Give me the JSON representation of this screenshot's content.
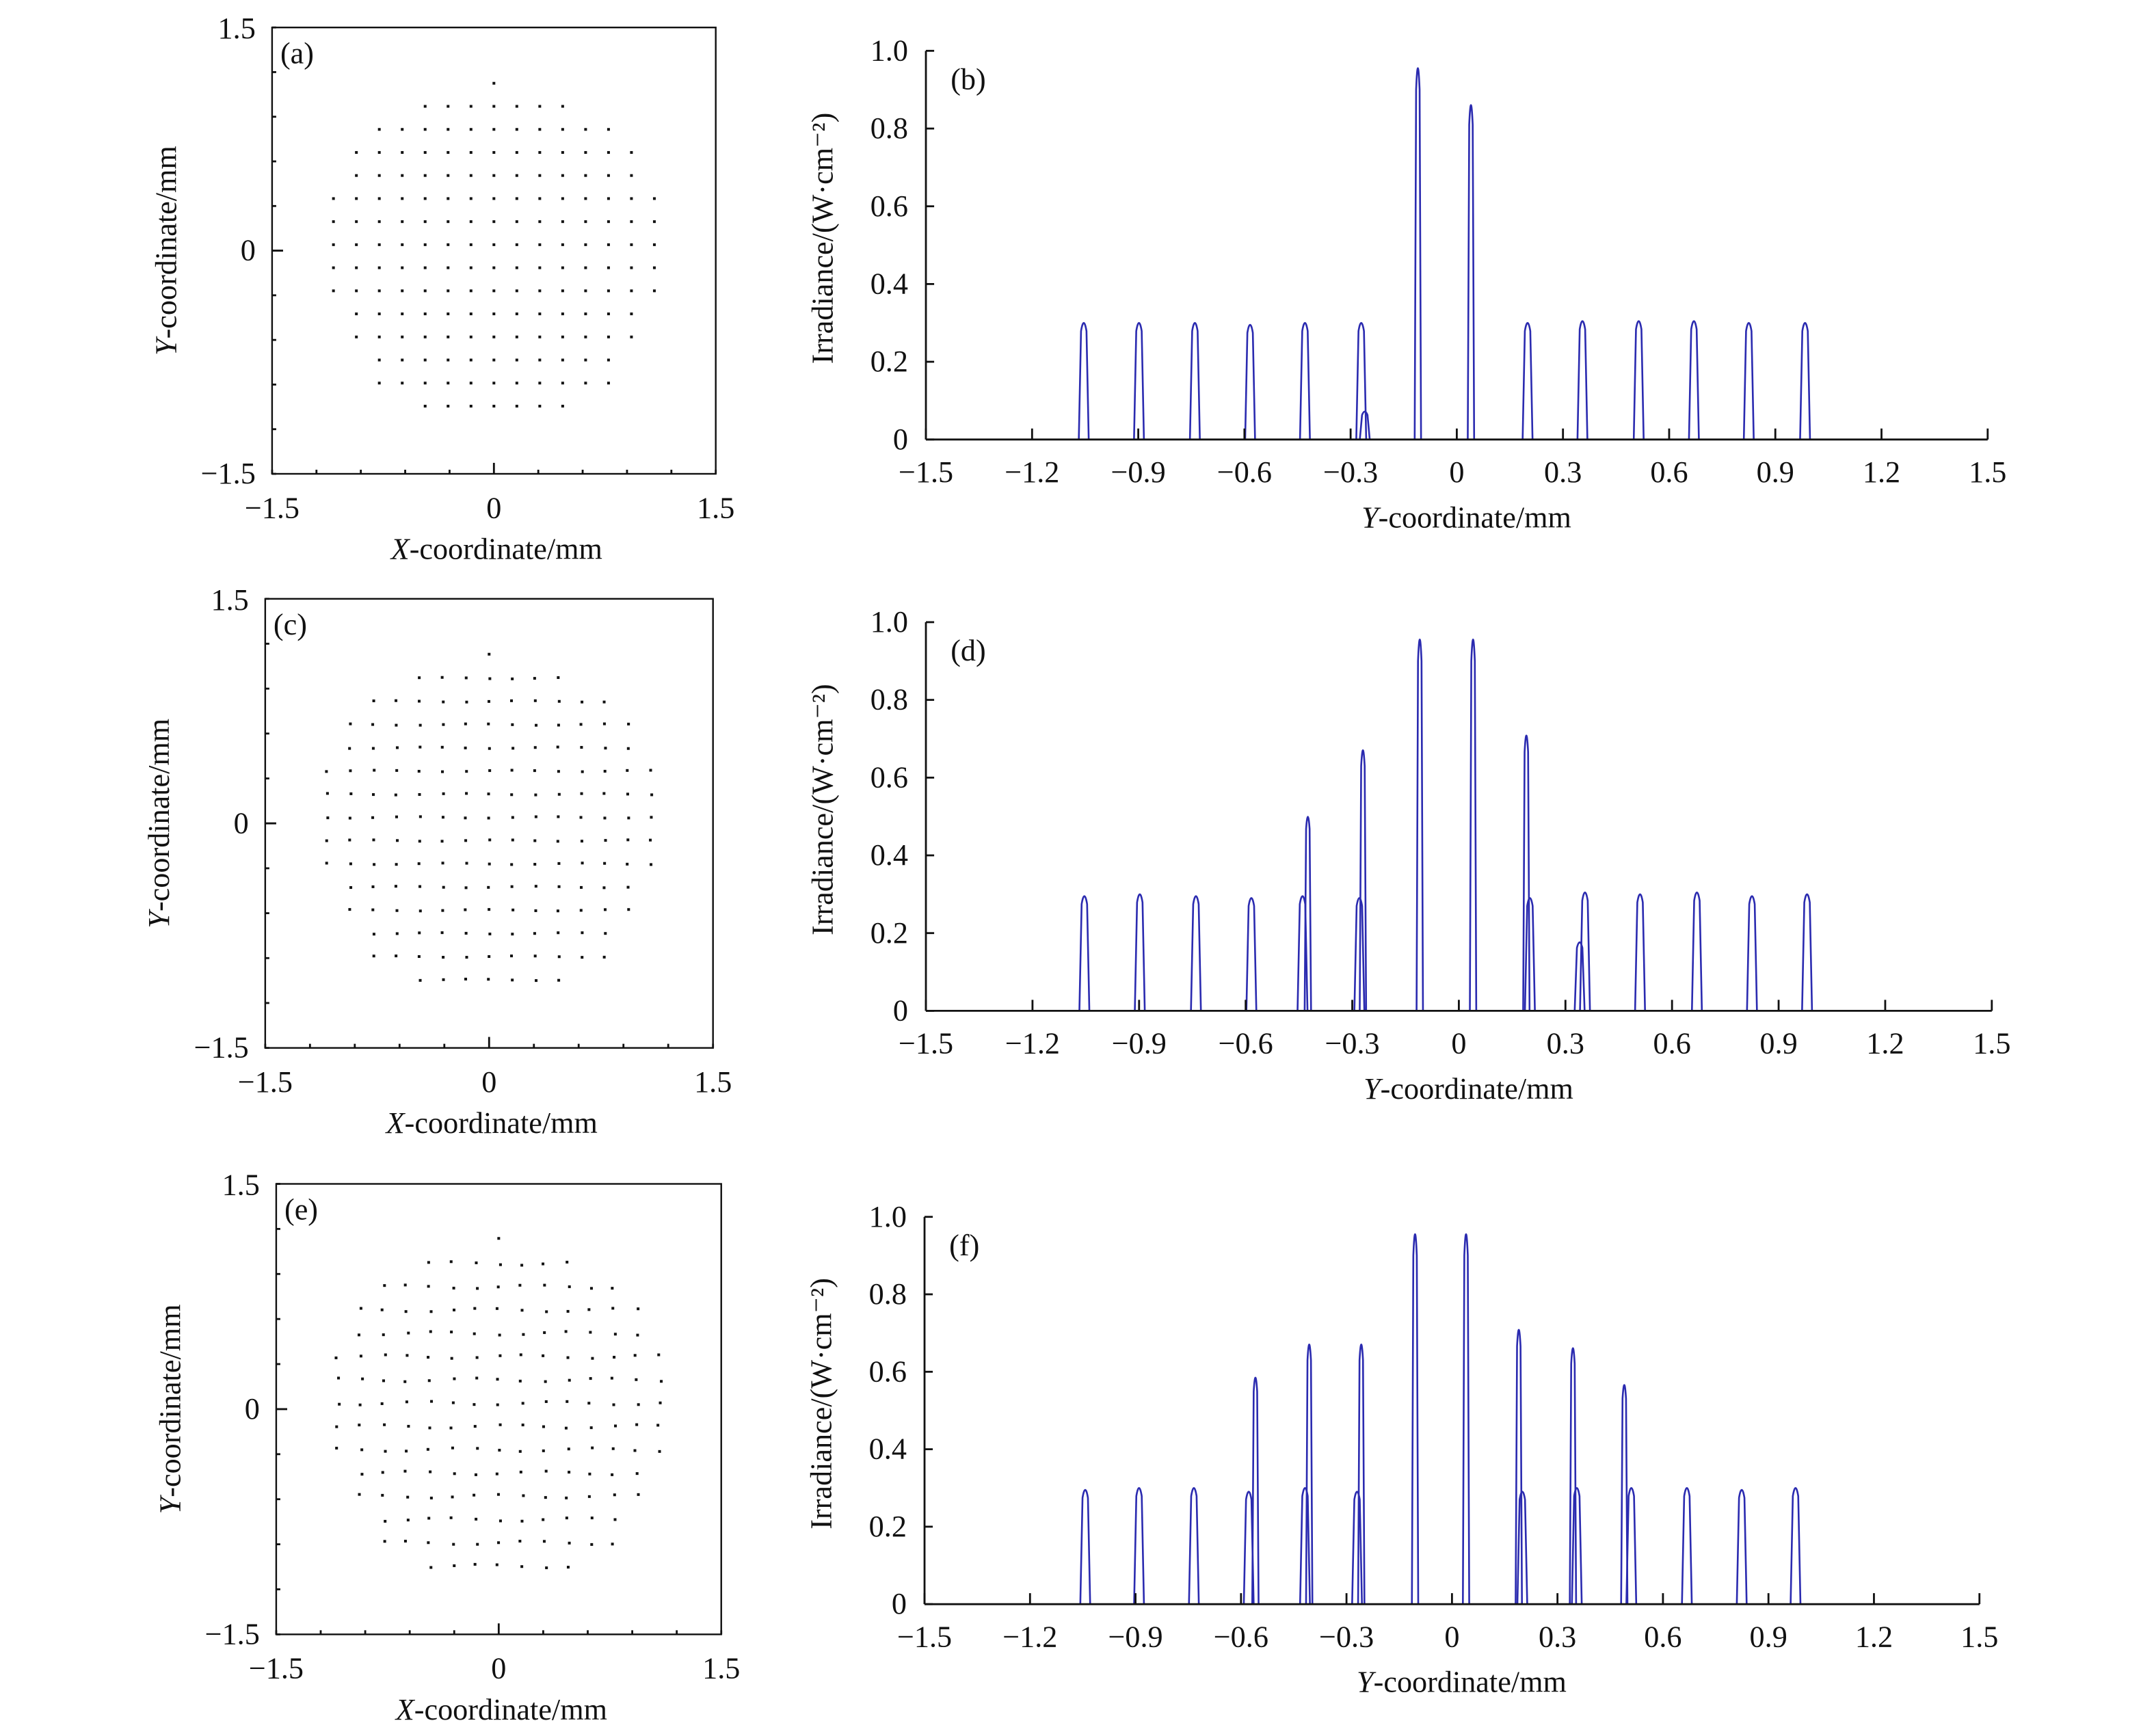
{
  "chart_data": [
    {
      "panel": "(a)",
      "type": "scatter",
      "xlabel": "X-coordinate/mm",
      "ylabel": "Y-coordinate/mm",
      "xlim": [
        -1.5,
        1.5
      ],
      "ylim": [
        -1.5,
        1.5
      ],
      "xticks": [
        "−1.5",
        "0",
        "1.5"
      ],
      "yticks": [
        "−1.5",
        "0",
        "1.5"
      ],
      "grid": false,
      "point_grid": {
        "spacing": 0.155,
        "rows": [
          {
            "y": 1.125,
            "x_min": 0,
            "x_max": 0
          },
          {
            "y": 0.97,
            "x_min": -0.465,
            "x_max": 0.465
          },
          {
            "y": 0.815,
            "x_min": -0.775,
            "x_max": 0.775
          },
          {
            "y": 0.66,
            "x_min": -0.93,
            "x_max": 0.93
          },
          {
            "y": 0.505,
            "x_min": -0.93,
            "x_max": 0.93
          },
          {
            "y": 0.35,
            "x_min": -1.085,
            "x_max": 1.085
          },
          {
            "y": 0.195,
            "x_min": -1.085,
            "x_max": 1.085
          },
          {
            "y": 0.04,
            "x_min": -1.085,
            "x_max": 1.085
          },
          {
            "y": -0.115,
            "x_min": -1.085,
            "x_max": 1.085
          },
          {
            "y": -0.27,
            "x_min": -1.085,
            "x_max": 1.085
          },
          {
            "y": -0.425,
            "x_min": -0.93,
            "x_max": 0.93
          },
          {
            "y": -0.58,
            "x_min": -0.93,
            "x_max": 0.93
          },
          {
            "y": -0.735,
            "x_min": -0.775,
            "x_max": 0.775
          },
          {
            "y": -0.89,
            "x_min": -0.775,
            "x_max": 0.775
          },
          {
            "y": -1.045,
            "x_min": -0.465,
            "x_max": 0.465
          }
        ]
      }
    },
    {
      "panel": "(b)",
      "type": "line",
      "xlabel": "Y-coordinate/mm",
      "ylabel": "Irradiance/(W·cm⁻²)",
      "xlim": [
        -1.5,
        1.5
      ],
      "ylim": [
        0,
        1.0
      ],
      "xticks": [
        "−1.5",
        "−1.2",
        "−0.9",
        "−0.6",
        "−0.3",
        "0",
        "0.3",
        "0.6",
        "0.9",
        "1.2",
        "1.5"
      ],
      "yticks": [
        "0",
        "0.2",
        "0.4",
        "0.6",
        "0.8",
        "1.0"
      ],
      "grid": false,
      "peaks": [
        {
          "x": -1.054,
          "y": 0.31
        },
        {
          "x": -0.898,
          "y": 0.31
        },
        {
          "x": -0.74,
          "y": 0.31
        },
        {
          "x": -0.584,
          "y": 0.305
        },
        {
          "x": -0.429,
          "y": 0.31
        },
        {
          "x": -0.27,
          "y": 0.31
        },
        {
          "x": -0.26,
          "y": 0.07
        },
        {
          "x": -0.11,
          "y": 1.0
        },
        {
          "x": 0.04,
          "y": 0.9
        },
        {
          "x": 0.2,
          "y": 0.31
        },
        {
          "x": 0.355,
          "y": 0.315
        },
        {
          "x": 0.514,
          "y": 0.315
        },
        {
          "x": 0.67,
          "y": 0.315
        },
        {
          "x": 0.825,
          "y": 0.31
        },
        {
          "x": 0.984,
          "y": 0.31
        }
      ]
    },
    {
      "panel": "(c)",
      "type": "scatter",
      "xlabel": "X-coordinate/mm",
      "ylabel": "Y-coordinate/mm",
      "xlim": [
        -1.5,
        1.5
      ],
      "ylim": [
        -1.5,
        1.5
      ],
      "xticks": [
        "−1.5",
        "0",
        "1.5"
      ],
      "yticks": [
        "−1.5",
        "0",
        "1.5"
      ],
      "grid": false
    },
    {
      "panel": "(d)",
      "type": "line",
      "xlabel": "Y-coordinate/mm",
      "ylabel": "Irradiance/(W·cm⁻²)",
      "xlim": [
        -1.5,
        1.5
      ],
      "ylim": [
        0,
        1.0
      ],
      "xticks": [
        "−1.5",
        "−1.2",
        "−0.9",
        "−0.6",
        "−0.3",
        "0",
        "0.3",
        "0.6",
        "0.9",
        "1.2",
        "1.5"
      ],
      "yticks": [
        "0",
        "0.2",
        "0.4",
        "0.6",
        "0.8",
        "1.0"
      ],
      "grid": false,
      "peaks": [
        {
          "x": -1.054,
          "y": 0.305
        },
        {
          "x": -0.898,
          "y": 0.31
        },
        {
          "x": -0.74,
          "y": 0.305
        },
        {
          "x": -0.584,
          "y": 0.3
        },
        {
          "x": -0.44,
          "y": 0.305
        },
        {
          "x": -0.425,
          "y": 0.52
        },
        {
          "x": -0.28,
          "y": 0.3
        },
        {
          "x": -0.27,
          "y": 0.7
        },
        {
          "x": -0.11,
          "y": 1.0
        },
        {
          "x": 0.04,
          "y": 1.0
        },
        {
          "x": 0.19,
          "y": 0.74
        },
        {
          "x": 0.2,
          "y": 0.3
        },
        {
          "x": 0.34,
          "y": 0.18
        },
        {
          "x": 0.355,
          "y": 0.315
        },
        {
          "x": 0.51,
          "y": 0.31
        },
        {
          "x": 0.67,
          "y": 0.315
        },
        {
          "x": 0.825,
          "y": 0.305
        },
        {
          "x": 0.98,
          "y": 0.31
        }
      ]
    },
    {
      "panel": "(e)",
      "type": "scatter",
      "xlabel": "X-coordinate/mm",
      "ylabel": "Y-coordinate/mm",
      "xlim": [
        -1.5,
        1.5
      ],
      "ylim": [
        -1.5,
        1.5
      ],
      "xticks": [
        "−1.5",
        "0",
        "1.5"
      ],
      "yticks": [
        "−1.5",
        "0",
        "1.5"
      ],
      "grid": false
    },
    {
      "panel": "(f)",
      "type": "line",
      "xlabel": "Y-coordinate/mm",
      "ylabel": "Irradiance/(W·cm⁻²)",
      "xlim": [
        -1.5,
        1.5
      ],
      "ylim": [
        0,
        1.0
      ],
      "xticks": [
        "−1.5",
        "−1.2",
        "−0.9",
        "−0.6",
        "−0.3",
        "0",
        "0.3",
        "0.6",
        "0.9",
        "1.2",
        "1.5"
      ],
      "yticks": [
        "0",
        "0.2",
        "0.4",
        "0.6",
        "0.8",
        "1.0"
      ],
      "grid": false,
      "peaks": [
        {
          "x": -1.043,
          "y": 0.305
        },
        {
          "x": -0.89,
          "y": 0.31
        },
        {
          "x": -0.734,
          "y": 0.31
        },
        {
          "x": -0.578,
          "y": 0.3
        },
        {
          "x": -0.559,
          "y": 0.61
        },
        {
          "x": -0.418,
          "y": 0.31
        },
        {
          "x": -0.406,
          "y": 0.7
        },
        {
          "x": -0.27,
          "y": 0.3
        },
        {
          "x": -0.258,
          "y": 0.7
        },
        {
          "x": -0.105,
          "y": 1.0
        },
        {
          "x": 0.04,
          "y": 1.0
        },
        {
          "x": 0.19,
          "y": 0.74
        },
        {
          "x": 0.2,
          "y": 0.3
        },
        {
          "x": 0.344,
          "y": 0.69
        },
        {
          "x": 0.355,
          "y": 0.31
        },
        {
          "x": 0.49,
          "y": 0.59
        },
        {
          "x": 0.51,
          "y": 0.31
        },
        {
          "x": 0.668,
          "y": 0.31
        },
        {
          "x": 0.824,
          "y": 0.305
        },
        {
          "x": 0.977,
          "y": 0.31
        }
      ]
    }
  ],
  "colors": {
    "peak_line": "#2b2bb0",
    "axis": "#111111",
    "dots": "#111111"
  }
}
